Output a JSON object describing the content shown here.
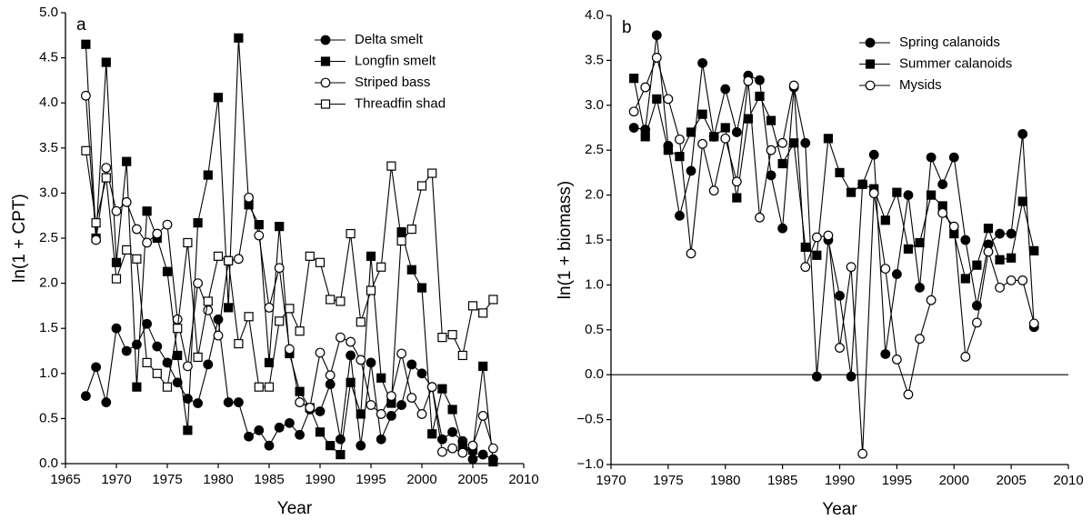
{
  "chart_data": [
    {
      "type": "line",
      "panel_label": "a",
      "xlabel": "Year",
      "ylabel": "ln(1 + CPT)",
      "xlim": [
        1965,
        2010
      ],
      "xticks": [
        1965,
        1970,
        1975,
        1980,
        1985,
        1990,
        1995,
        2000,
        2005,
        2010
      ],
      "ylim": [
        0,
        5
      ],
      "yticks": [
        {
          "value": 0,
          "label": "0.0"
        },
        {
          "value": 0.5,
          "label": "0.5"
        },
        {
          "value": 1,
          "label": "1.0"
        },
        {
          "value": 1.5,
          "label": "1.5"
        },
        {
          "value": 2,
          "label": "2.0"
        },
        {
          "value": 2.5,
          "label": "2.5"
        },
        {
          "value": 3,
          "label": "3.0"
        },
        {
          "value": 3.5,
          "label": "3.5"
        },
        {
          "value": 4,
          "label": "4.0"
        },
        {
          "value": 4.5,
          "label": "4.5"
        },
        {
          "value": 5,
          "label": "5.0"
        }
      ],
      "legend": "top-right",
      "x": [
        1967,
        1968,
        1969,
        1970,
        1971,
        1972,
        1973,
        1974,
        1975,
        1976,
        1977,
        1978,
        1979,
        1980,
        1981,
        1982,
        1983,
        1984,
        1985,
        1986,
        1987,
        1988,
        1989,
        1990,
        1991,
        1992,
        1993,
        1994,
        1995,
        1996,
        1997,
        1998,
        1999,
        2000,
        2001,
        2002,
        2003,
        2004,
        2005,
        2006,
        2007
      ],
      "series": [
        {
          "name": "Delta smelt",
          "color": "#000000",
          "marker": "circle",
          "marker_fill": "#000000",
          "values": [
            0.75,
            1.07,
            0.68,
            1.5,
            1.25,
            1.32,
            1.55,
            1.3,
            1.12,
            0.9,
            0.72,
            0.67,
            1.1,
            1.6,
            0.68,
            0.68,
            0.3,
            0.37,
            0.2,
            0.4,
            0.45,
            0.32,
            0.6,
            0.58,
            0.88,
            0.27,
            1.2,
            0.2,
            1.12,
            0.27,
            0.53,
            0.65,
            1.1,
            1.0,
            0.85,
            0.27,
            0.35,
            0.25,
            0.05,
            0.1,
            0.05
          ]
        },
        {
          "name": "Longfin smelt",
          "color": "#000000",
          "marker": "square",
          "marker_fill": "#000000",
          "values": [
            4.65,
            2.5,
            4.45,
            2.23,
            3.35,
            0.85,
            2.8,
            2.5,
            2.13,
            1.2,
            0.37,
            2.67,
            3.2,
            4.06,
            1.73,
            4.72,
            2.87,
            2.65,
            1.12,
            2.63,
            1.22,
            0.8,
            0.62,
            0.35,
            0.2,
            0.1,
            0.9,
            0.55,
            2.3,
            0.95,
            0.67,
            2.57,
            2.15,
            1.95,
            0.33,
            0.83,
            0.6,
            0.2,
            0.15,
            1.08,
            0.02
          ]
        },
        {
          "name": "Striped bass",
          "color": "#000000",
          "marker": "circle",
          "marker_fill": "#ffffff",
          "values": [
            4.08,
            2.48,
            3.28,
            2.8,
            2.9,
            2.6,
            2.45,
            2.55,
            2.65,
            1.6,
            1.08,
            2.0,
            1.7,
            1.42,
            2.25,
            2.27,
            2.95,
            2.53,
            1.73,
            2.17,
            1.27,
            0.68,
            0.62,
            1.23,
            0.98,
            1.4,
            1.35,
            1.15,
            0.65,
            0.55,
            0.75,
            1.22,
            0.73,
            0.55,
            0.85,
            0.13,
            0.17,
            0.12,
            0.2,
            0.53,
            0.17
          ]
        },
        {
          "name": "Threadfin shad",
          "color": "#000000",
          "marker": "square",
          "marker_fill": "#ffffff",
          "values": [
            3.47,
            2.67,
            3.17,
            2.05,
            2.37,
            2.27,
            1.12,
            1.0,
            0.85,
            1.5,
            2.45,
            1.18,
            1.8,
            2.3,
            2.25,
            1.33,
            1.63,
            0.85,
            0.85,
            1.58,
            1.72,
            1.47,
            2.3,
            2.23,
            1.82,
            1.8,
            2.55,
            1.57,
            1.92,
            2.18,
            3.3,
            2.47,
            2.6,
            3.08,
            3.22,
            1.4,
            1.43,
            1.2,
            1.75,
            1.67,
            1.82
          ]
        }
      ]
    },
    {
      "type": "line",
      "panel_label": "b",
      "xlabel": "Year",
      "ylabel": "ln(1 + biomass)",
      "xlim": [
        1970,
        2010
      ],
      "xticks": [
        1970,
        1975,
        1980,
        1985,
        1990,
        1995,
        2000,
        2005,
        2010
      ],
      "ylim": [
        -1,
        4
      ],
      "yticks": [
        {
          "value": -1,
          "label": "−1.0"
        },
        {
          "value": -0.5,
          "label": "−0.5"
        },
        {
          "value": 0,
          "label": "0.0"
        },
        {
          "value": 0.5,
          "label": "0.5"
        },
        {
          "value": 1,
          "label": "1.0"
        },
        {
          "value": 1.5,
          "label": "1.5"
        },
        {
          "value": 2,
          "label": "2.0"
        },
        {
          "value": 2.5,
          "label": "2.5"
        },
        {
          "value": 3,
          "label": "3.0"
        },
        {
          "value": 3.5,
          "label": "3.5"
        },
        {
          "value": 4,
          "label": "4.0"
        }
      ],
      "hline": 0,
      "legend": "top-right",
      "x": [
        1972,
        1973,
        1974,
        1975,
        1976,
        1977,
        1978,
        1979,
        1980,
        1981,
        1982,
        1983,
        1984,
        1985,
        1986,
        1987,
        1988,
        1989,
        1990,
        1991,
        1992,
        1993,
        1994,
        1995,
        1996,
        1997,
        1998,
        1999,
        2000,
        2001,
        2002,
        2003,
        2004,
        2005,
        2006,
        2007
      ],
      "series": [
        {
          "name": "Spring calanoids",
          "color": "#000000",
          "marker": "circle",
          "marker_fill": "#000000",
          "values": [
            2.75,
            2.73,
            3.78,
            2.55,
            1.77,
            2.27,
            3.47,
            2.65,
            3.18,
            2.7,
            3.33,
            3.28,
            2.22,
            1.63,
            3.2,
            2.58,
            -0.02,
            1.5,
            0.88,
            -0.02,
            2.12,
            2.45,
            0.23,
            1.12,
            2.0,
            0.97,
            2.42,
            2.12,
            2.42,
            1.5,
            0.77,
            1.45,
            1.57,
            1.57,
            2.68,
            0.53
          ]
        },
        {
          "name": "Summer calanoids",
          "color": "#000000",
          "marker": "square",
          "marker_fill": "#000000",
          "values": [
            3.3,
            2.65,
            3.07,
            2.5,
            2.43,
            2.7,
            2.9,
            2.65,
            2.75,
            1.97,
            2.85,
            3.1,
            2.83,
            2.35,
            2.58,
            1.42,
            1.33,
            2.63,
            2.25,
            2.03,
            2.12,
            2.07,
            1.72,
            2.03,
            1.4,
            1.47,
            2.0,
            1.88,
            1.57,
            1.07,
            1.22,
            1.63,
            1.28,
            1.3,
            1.93,
            1.38
          ]
        },
        {
          "name": "Mysids",
          "color": "#000000",
          "marker": "circle",
          "marker_fill": "#ffffff",
          "values": [
            2.93,
            3.2,
            3.53,
            3.07,
            2.62,
            1.35,
            2.57,
            2.05,
            2.63,
            2.15,
            3.27,
            1.75,
            2.5,
            2.58,
            3.22,
            1.2,
            1.53,
            1.55,
            0.3,
            1.2,
            -0.88,
            2.02,
            1.18,
            0.17,
            -0.22,
            0.4,
            0.83,
            1.8,
            1.65,
            0.2,
            0.58,
            1.37,
            0.97,
            1.05,
            1.05,
            0.57
          ]
        }
      ]
    }
  ]
}
